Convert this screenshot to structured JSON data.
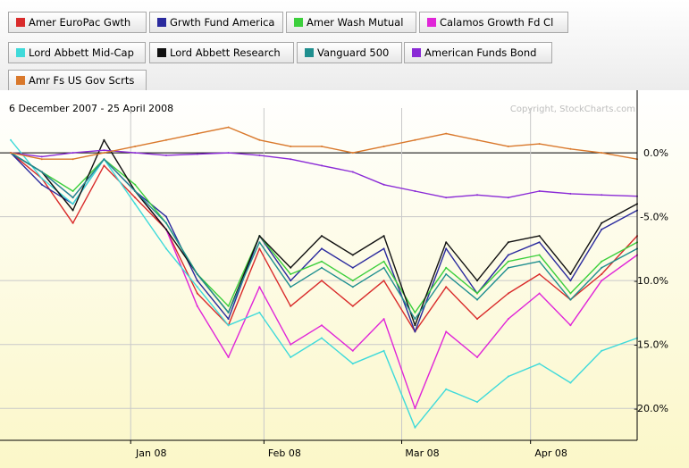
{
  "colors": {
    "background_top": "#ffffff",
    "background_bottom": "#fbf7c8",
    "grid": "#c9c9c9",
    "zero_line": "#000000"
  },
  "chart_data": {
    "type": "line",
    "date_range": "6 December 2007 - 25 April 2008",
    "copyright": "Copyright, StockCharts.com",
    "y_unit": "percent change",
    "ylim": [
      -22.5,
      3.5
    ],
    "yticks": [
      {
        "value": 0,
        "label": "0.0%"
      },
      {
        "value": -5,
        "label": "-5.0%"
      },
      {
        "value": -10,
        "label": "-10.0%"
      },
      {
        "value": -15,
        "label": "-15.0%"
      },
      {
        "value": -20,
        "label": "-20.0%"
      }
    ],
    "xlim": [
      "2007-12-06",
      "2008-04-25"
    ],
    "xticks": [
      {
        "date": "2008-01-02",
        "label": "Jan 08"
      },
      {
        "date": "2008-02-01",
        "label": "Feb 08"
      },
      {
        "date": "2008-03-03",
        "label": "Mar 08"
      },
      {
        "date": "2008-04-01",
        "label": "Apr 08"
      }
    ],
    "grid": true,
    "legend_position": "top",
    "series": [
      {
        "name": "Amer EuroPac Gwth",
        "color": "#d92b2b",
        "x": [
          "2007-12-06",
          "2007-12-13",
          "2007-12-20",
          "2007-12-27",
          "2008-01-03",
          "2008-01-10",
          "2008-01-17",
          "2008-01-24",
          "2008-01-31",
          "2008-02-07",
          "2008-02-14",
          "2008-02-21",
          "2008-02-28",
          "2008-03-06",
          "2008-03-13",
          "2008-03-20",
          "2008-03-27",
          "2008-04-03",
          "2008-04-10",
          "2008-04-17",
          "2008-04-25"
        ],
        "values": [
          0,
          -2,
          -5.5,
          -1,
          -3.5,
          -6,
          -11,
          -13.5,
          -7.5,
          -12,
          -10,
          -12,
          -10,
          -14,
          -10.5,
          -13,
          -11,
          -9.5,
          -11.5,
          -9.5,
          -6.5
        ]
      },
      {
        "name": "Grwth Fund America",
        "color": "#2a2a9e",
        "x": [
          "2007-12-06",
          "2007-12-13",
          "2007-12-20",
          "2007-12-27",
          "2008-01-03",
          "2008-01-10",
          "2008-01-17",
          "2008-01-24",
          "2008-01-31",
          "2008-02-07",
          "2008-02-14",
          "2008-02-21",
          "2008-02-28",
          "2008-03-06",
          "2008-03-13",
          "2008-03-20",
          "2008-03-27",
          "2008-04-03",
          "2008-04-10",
          "2008-04-17",
          "2008-04-25"
        ],
        "values": [
          0,
          -2.5,
          -4,
          -0.5,
          -3,
          -5,
          -10,
          -13,
          -6.5,
          -10,
          -7.5,
          -9,
          -7.5,
          -14,
          -7.5,
          -11,
          -8,
          -7,
          -10,
          -6,
          -4.5
        ]
      },
      {
        "name": "Amer Wash Mutual",
        "color": "#3ccf3c",
        "x": [
          "2007-12-06",
          "2007-12-13",
          "2007-12-20",
          "2007-12-27",
          "2008-01-03",
          "2008-01-10",
          "2008-01-17",
          "2008-01-24",
          "2008-01-31",
          "2008-02-07",
          "2008-02-14",
          "2008-02-21",
          "2008-02-28",
          "2008-03-06",
          "2008-03-13",
          "2008-03-20",
          "2008-03-27",
          "2008-04-03",
          "2008-04-10",
          "2008-04-17",
          "2008-04-25"
        ],
        "values": [
          0,
          -1.5,
          -3,
          -0.5,
          -2.5,
          -5.5,
          -9.5,
          -12,
          -6.5,
          -9.5,
          -8.5,
          -10,
          -8.5,
          -12.5,
          -9,
          -11,
          -8.5,
          -8,
          -11,
          -8.5,
          -7
        ]
      },
      {
        "name": "Calamos Growth Fd Cl",
        "color": "#e025d8",
        "x": [
          "2007-12-06",
          "2007-12-13",
          "2007-12-20",
          "2007-12-27",
          "2008-01-03",
          "2008-01-10",
          "2008-01-17",
          "2008-01-24",
          "2008-01-31",
          "2008-02-07",
          "2008-02-14",
          "2008-02-21",
          "2008-02-28",
          "2008-03-06",
          "2008-03-13",
          "2008-03-20",
          "2008-03-27",
          "2008-04-03",
          "2008-04-10",
          "2008-04-17",
          "2008-04-25"
        ],
        "values": [
          0,
          -1.5,
          -3.5,
          -0.5,
          -3,
          -6,
          -12,
          -16,
          -10.5,
          -15,
          -13.5,
          -15.5,
          -13,
          -20,
          -14,
          -16,
          -13,
          -11,
          -13.5,
          -10,
          -8
        ]
      },
      {
        "name": "Lord Abbett Mid-Cap",
        "color": "#3fdada",
        "x": [
          "2007-12-06",
          "2007-12-13",
          "2007-12-20",
          "2007-12-27",
          "2008-01-03",
          "2008-01-10",
          "2008-01-17",
          "2008-01-24",
          "2008-01-31",
          "2008-02-07",
          "2008-02-14",
          "2008-02-21",
          "2008-02-28",
          "2008-03-06",
          "2008-03-13",
          "2008-03-20",
          "2008-03-27",
          "2008-04-03",
          "2008-04-10",
          "2008-04-17",
          "2008-04-25"
        ],
        "values": [
          1,
          -2,
          -4,
          -0.5,
          -4,
          -7.5,
          -10.5,
          -13.5,
          -12.5,
          -16,
          -14.5,
          -16.5,
          -15.5,
          -21.5,
          -18.5,
          -19.5,
          -17.5,
          -16.5,
          -18,
          -15.5,
          -14.5
        ]
      },
      {
        "name": "Lord Abbett Research",
        "color": "#111111",
        "x": [
          "2007-12-06",
          "2007-12-13",
          "2007-12-20",
          "2007-12-27",
          "2008-01-03",
          "2008-01-10",
          "2008-01-17",
          "2008-01-24",
          "2008-01-31",
          "2008-02-07",
          "2008-02-14",
          "2008-02-21",
          "2008-02-28",
          "2008-03-06",
          "2008-03-13",
          "2008-03-20",
          "2008-03-27",
          "2008-04-03",
          "2008-04-10",
          "2008-04-17",
          "2008-04-25"
        ],
        "values": [
          0,
          -1.5,
          -4.5,
          1,
          -3,
          -6,
          -9.5,
          -12.5,
          -6.5,
          -9,
          -6.5,
          -8,
          -6.5,
          -13.5,
          -7,
          -10,
          -7,
          -6.5,
          -9.5,
          -5.5,
          -4
        ]
      },
      {
        "name": "Vanguard 500",
        "color": "#1f8f8f",
        "x": [
          "2007-12-06",
          "2007-12-13",
          "2007-12-20",
          "2007-12-27",
          "2008-01-03",
          "2008-01-10",
          "2008-01-17",
          "2008-01-24",
          "2008-01-31",
          "2008-02-07",
          "2008-02-14",
          "2008-02-21",
          "2008-02-28",
          "2008-03-06",
          "2008-03-13",
          "2008-03-20",
          "2008-03-27",
          "2008-04-03",
          "2008-04-10",
          "2008-04-17",
          "2008-04-25"
        ],
        "values": [
          0,
          -1.5,
          -3.5,
          -0.5,
          -3,
          -5.5,
          -9.5,
          -12.5,
          -7,
          -10.5,
          -9,
          -10.5,
          -9,
          -13,
          -9.5,
          -11.5,
          -9,
          -8.5,
          -11.5,
          -9,
          -7.5
        ]
      },
      {
        "name": "American Funds Bond",
        "color": "#8a2ad6",
        "x": [
          "2007-12-06",
          "2007-12-13",
          "2007-12-20",
          "2007-12-27",
          "2008-01-03",
          "2008-01-10",
          "2008-01-17",
          "2008-01-24",
          "2008-01-31",
          "2008-02-07",
          "2008-02-14",
          "2008-02-21",
          "2008-02-28",
          "2008-03-06",
          "2008-03-13",
          "2008-03-20",
          "2008-03-27",
          "2008-04-03",
          "2008-04-10",
          "2008-04-17",
          "2008-04-25"
        ],
        "values": [
          0,
          -0.3,
          0,
          0.2,
          0,
          -0.2,
          -0.1,
          0,
          -0.2,
          -0.5,
          -1,
          -1.5,
          -2.5,
          -3,
          -3.5,
          -3.3,
          -3.5,
          -3,
          -3.2,
          -3.3,
          -3.4
        ]
      },
      {
        "name": "Amr Fs US Gov Scrts",
        "color": "#d9782b",
        "x": [
          "2007-12-06",
          "2007-12-13",
          "2007-12-20",
          "2007-12-27",
          "2008-01-03",
          "2008-01-10",
          "2008-01-17",
          "2008-01-24",
          "2008-01-31",
          "2008-02-07",
          "2008-02-14",
          "2008-02-21",
          "2008-02-28",
          "2008-03-06",
          "2008-03-13",
          "2008-03-20",
          "2008-03-27",
          "2008-04-03",
          "2008-04-10",
          "2008-04-17",
          "2008-04-25"
        ],
        "values": [
          0,
          -0.5,
          -0.5,
          0,
          0.5,
          1,
          1.5,
          2,
          1,
          0.5,
          0.5,
          0,
          0.5,
          1,
          1.5,
          1,
          0.5,
          0.7,
          0.3,
          0,
          -0.5
        ]
      }
    ]
  }
}
